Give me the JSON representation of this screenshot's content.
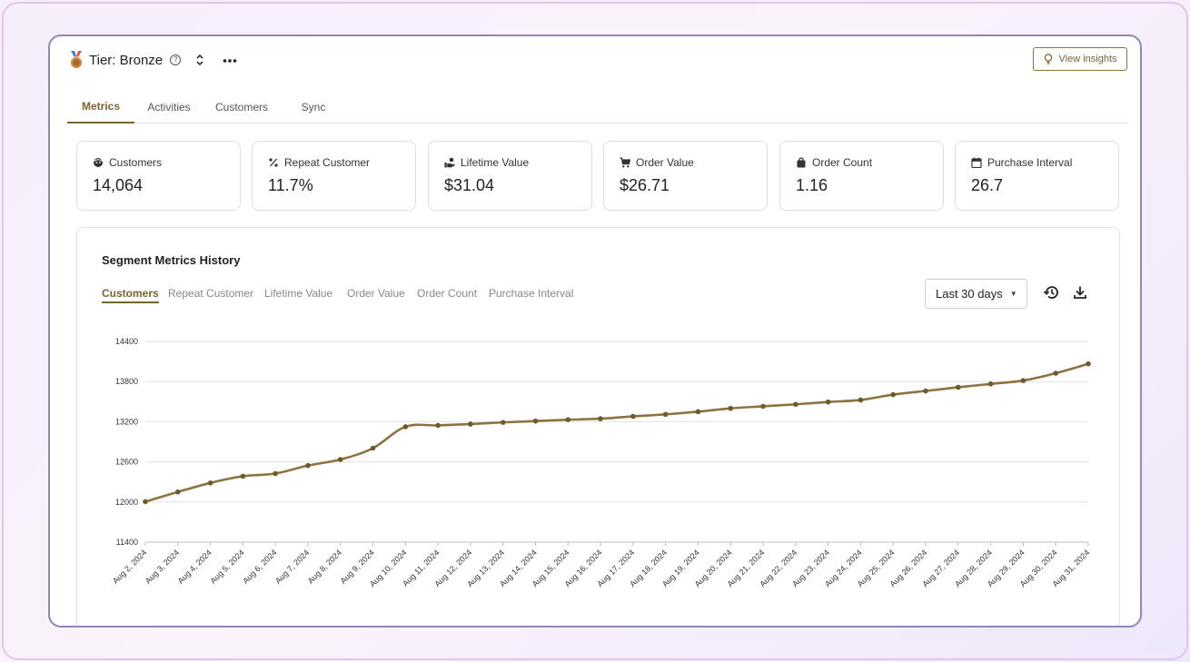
{
  "header": {
    "title": "Tier: Bronze",
    "help_icon": "help-circle-icon",
    "sort_icon": "unfold-icon",
    "more_icon": "more-horizontal-icon",
    "insights_label": "View insights",
    "insights_icon": "lightbulb-icon"
  },
  "tabs": [
    {
      "label": "Metrics",
      "active": true
    },
    {
      "label": "Activities",
      "active": false
    },
    {
      "label": "Customers",
      "active": false
    },
    {
      "label": "Sync",
      "active": false
    }
  ],
  "kpis": [
    {
      "label": "Customers",
      "value": "14,064",
      "icon": "user-face-icon"
    },
    {
      "label": "Repeat Customer",
      "value": "11.7%",
      "icon": "percent-icon"
    },
    {
      "label": "Lifetime Value",
      "value": "$31.04",
      "icon": "hand-money-icon"
    },
    {
      "label": "Order Value",
      "value": "$26.71",
      "icon": "cart-icon"
    },
    {
      "label": "Order Count",
      "value": "1.16",
      "icon": "bag-icon"
    },
    {
      "label": "Purchase Interval",
      "value": "26.7",
      "icon": "calendar-icon"
    }
  ],
  "history": {
    "title": "Segment Metrics History",
    "metric_tabs": [
      {
        "label": "Customers",
        "active": true
      },
      {
        "label": "Repeat Customer",
        "active": false
      },
      {
        "label": "Lifetime Value",
        "active": false
      },
      {
        "label": "Order Value",
        "active": false
      },
      {
        "label": "Order Count",
        "active": false
      },
      {
        "label": "Purchase Interval",
        "active": false
      }
    ],
    "range_label": "Last 30 days",
    "history_icon": "history-icon",
    "download_icon": "download-icon"
  },
  "colors": {
    "accent": "#7a6430",
    "line": "#8b7440",
    "grid": "#e2e2e2"
  },
  "chart_data": {
    "type": "line",
    "title": "",
    "xlabel": "",
    "ylabel": "",
    "ylim": [
      11400,
      14400
    ],
    "yticks": [
      11400,
      12000,
      12600,
      13200,
      13800,
      14400
    ],
    "grid": true,
    "legend": "none",
    "x": [
      "Aug 2, 2024",
      "Aug 3, 2024",
      "Aug 4, 2024",
      "Aug 5, 2024",
      "Aug 6, 2024",
      "Aug 7, 2024",
      "Aug 8, 2024",
      "Aug 9, 2024",
      "Aug 10, 2024",
      "Aug 11, 2024",
      "Aug 12, 2024",
      "Aug 13, 2024",
      "Aug 14, 2024",
      "Aug 15, 2024",
      "Aug 16, 2024",
      "Aug 17, 2024",
      "Aug 18, 2024",
      "Aug 19, 2024",
      "Aug 20, 2024",
      "Aug 21, 2024",
      "Aug 22, 2024",
      "Aug 23, 2024",
      "Aug 24, 2024",
      "Aug 25, 2024",
      "Aug 26, 2024",
      "Aug 27, 2024",
      "Aug 28, 2024",
      "Aug 29, 2024",
      "Aug 30, 2024",
      "Aug 31, 2024"
    ],
    "series": [
      {
        "values": [
          12005,
          12150,
          12285,
          12385,
          12425,
          12545,
          12635,
          12805,
          13125,
          13145,
          13165,
          13190,
          13210,
          13230,
          13245,
          13280,
          13310,
          13350,
          13400,
          13430,
          13460,
          13495,
          13525,
          13605,
          13660,
          13715,
          13765,
          13815,
          13925,
          14065
        ]
      }
    ]
  }
}
